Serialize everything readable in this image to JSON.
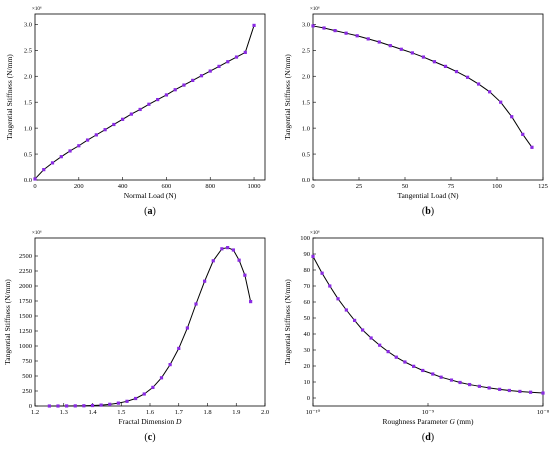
{
  "colors": {
    "marker": "#8a2be2",
    "line": "#000000",
    "axis": "#000000"
  },
  "chart_data": [
    {
      "type": "line",
      "xlabel": "Normal Load (N)",
      "ylabel": "Tangential Stiffness (N/mm)",
      "multiplier": "×10⁶",
      "caption": {
        "open": "(",
        "letter": "a",
        "close": ")"
      },
      "xlim": [
        0,
        1050
      ],
      "ylim": [
        0,
        3.2
      ],
      "xticks": [
        0,
        200,
        400,
        600,
        800,
        1000
      ],
      "yticks": [
        0.0,
        0.5,
        1.0,
        1.5,
        2.0,
        2.5,
        3.0
      ],
      "xtick_labels": [
        "0",
        "200",
        "400",
        "600",
        "800",
        "1000"
      ],
      "ytick_labels": [
        "0.0",
        "0.5",
        "1.0",
        "1.5",
        "2.0",
        "2.5",
        "3.0"
      ],
      "x": [
        0,
        40,
        80,
        120,
        160,
        200,
        240,
        280,
        320,
        360,
        400,
        440,
        480,
        520,
        560,
        600,
        640,
        680,
        720,
        760,
        800,
        840,
        880,
        920,
        960,
        1000
      ],
      "y": [
        0.02,
        0.2,
        0.33,
        0.45,
        0.56,
        0.66,
        0.77,
        0.87,
        0.97,
        1.07,
        1.17,
        1.27,
        1.36,
        1.46,
        1.55,
        1.64,
        1.74,
        1.83,
        1.92,
        2.01,
        2.1,
        2.19,
        2.28,
        2.37,
        2.46,
        2.98
      ],
      "grid": false
    },
    {
      "type": "line",
      "xlabel": "Tangential Load (N)",
      "ylabel": "Tangential Stiffness (N/mm)",
      "multiplier": "×10⁶",
      "caption": {
        "open": "(",
        "letter": "b",
        "close": ")"
      },
      "xlim": [
        0,
        125
      ],
      "ylim": [
        0,
        3.2
      ],
      "xticks": [
        0,
        25,
        50,
        75,
        100,
        125
      ],
      "yticks": [
        0.0,
        0.5,
        1.0,
        1.5,
        2.0,
        2.5,
        3.0
      ],
      "xtick_labels": [
        "0",
        "25",
        "50",
        "75",
        "100",
        "125"
      ],
      "ytick_labels": [
        "0.0",
        "0.5",
        "1.0",
        "1.5",
        "2.0",
        "2.5",
        "3.0"
      ],
      "x": [
        0,
        6,
        12,
        18,
        24,
        30,
        36,
        42,
        48,
        54,
        60,
        66,
        72,
        78,
        84,
        90,
        96,
        102,
        108,
        114,
        119
      ],
      "y": [
        2.97,
        2.93,
        2.88,
        2.83,
        2.78,
        2.72,
        2.66,
        2.59,
        2.52,
        2.45,
        2.37,
        2.28,
        2.19,
        2.09,
        1.98,
        1.85,
        1.7,
        1.5,
        1.22,
        0.88,
        0.63
      ],
      "grid": false
    },
    {
      "type": "line",
      "xlabel": "Fractal Dimension ",
      "xlabel_var": "D",
      "ylabel": "Tangential Stiffness (N/mm)",
      "multiplier": "×10⁶",
      "caption": {
        "open": "(",
        "letter": "c",
        "close": ")"
      },
      "xlim": [
        1.2,
        2.0
      ],
      "ylim": [
        0,
        2800
      ],
      "xticks": [
        1.2,
        1.3,
        1.4,
        1.5,
        1.6,
        1.7,
        1.8,
        1.9,
        2.0
      ],
      "yticks": [
        0,
        250,
        500,
        750,
        1000,
        1250,
        1500,
        1750,
        2000,
        2250,
        2500
      ],
      "xtick_labels": [
        "1.2",
        "1.3",
        "1.4",
        "1.5",
        "1.6",
        "1.7",
        "1.8",
        "1.9",
        "2.0"
      ],
      "ytick_labels": [
        "0",
        "250",
        "500",
        "750",
        "1000",
        "1250",
        "1500",
        "1750",
        "2000",
        "2250",
        "2500"
      ],
      "x": [
        1.25,
        1.28,
        1.31,
        1.34,
        1.37,
        1.4,
        1.43,
        1.46,
        1.49,
        1.52,
        1.55,
        1.58,
        1.61,
        1.64,
        1.67,
        1.7,
        1.73,
        1.76,
        1.79,
        1.82,
        1.85,
        1.87,
        1.89,
        1.91,
        1.93,
        1.95
      ],
      "y": [
        0,
        0,
        1,
        2,
        4,
        8,
        15,
        28,
        48,
        78,
        125,
        200,
        310,
        470,
        690,
        960,
        1300,
        1700,
        2080,
        2420,
        2620,
        2640,
        2600,
        2430,
        2180,
        1740
      ],
      "grid": false
    },
    {
      "type": "line",
      "xscale": "log",
      "xlabel": "Roughness Parameter ",
      "xlabel_var": "G",
      "xlabel_unit": " (mm)",
      "ylabel": "Tangential Stiffness (N/mm)",
      "multiplier": "×10⁶",
      "caption": {
        "open": "(",
        "letter": "d",
        "close": ")"
      },
      "xlim": [
        1e-10,
        1e-08
      ],
      "ylim": [
        -5,
        100
      ],
      "xticks": [
        1e-10,
        1e-09,
        1e-08
      ],
      "yticks": [
        0,
        10,
        20,
        30,
        40,
        50,
        60,
        70,
        80,
        90,
        100
      ],
      "xtick_labels": [
        "10⁻¹⁰",
        "10⁻⁹",
        "10⁻⁸"
      ],
      "ytick_labels": [
        "0",
        "10",
        "20",
        "30",
        "40",
        "50",
        "60",
        "70",
        "80",
        "90",
        "100"
      ],
      "x": [
        1e-10,
        1.2e-10,
        1.4e-10,
        1.65e-10,
        1.95e-10,
        2.3e-10,
        2.7e-10,
        3.2e-10,
        3.8e-10,
        4.5e-10,
        5.3e-10,
        6.3e-10,
        7.5e-10,
        9e-10,
        1.1e-09,
        1.3e-09,
        1.6e-09,
        1.9e-09,
        2.3e-09,
        2.8e-09,
        3.4e-09,
        4.2e-09,
        5.1e-09,
        6.3e-09,
        7.8e-09,
        1e-08
      ],
      "y": [
        88.5,
        78,
        70,
        62,
        55,
        48.5,
        42.5,
        37.5,
        33,
        29,
        25.5,
        22.5,
        19.8,
        17.2,
        15,
        13,
        11.2,
        9.7,
        8.4,
        7.3,
        6.3,
        5.4,
        4.7,
        4.1,
        3.6,
        3.1
      ],
      "grid": false
    }
  ]
}
